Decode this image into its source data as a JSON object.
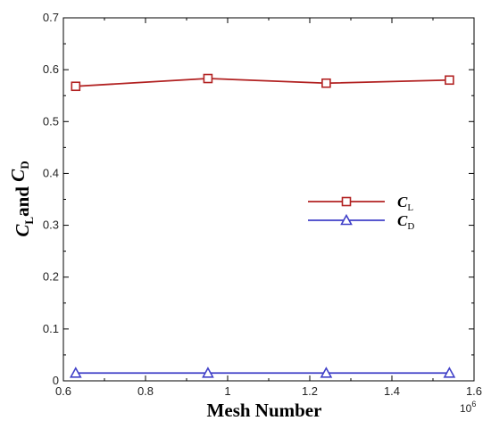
{
  "chart_data": {
    "type": "line",
    "xlabel": "Mesh Number",
    "ylabel": {
      "parts": [
        {
          "text": "C",
          "style": "italic"
        },
        {
          "text": "L",
          "style": "sub"
        },
        {
          "text": "and ",
          "style": "normal"
        },
        {
          "text": "C",
          "style": "italic"
        },
        {
          "text": "D",
          "style": "sub"
        }
      ]
    },
    "x_multiplier": "10",
    "x_multiplier_exp": "6",
    "xlim": [
      0.6,
      1.6
    ],
    "ylim": [
      0,
      0.7
    ],
    "x_ticks": [
      0.6,
      0.8,
      1,
      1.2,
      1.4,
      1.6
    ],
    "x_tick_labels": [
      "0.6",
      "0.8",
      "1",
      "1.2",
      "1.4",
      "1.6"
    ],
    "y_ticks": [
      0,
      0.1,
      0.2,
      0.3,
      0.4,
      0.5,
      0.6,
      0.7
    ],
    "y_tick_labels": [
      "0",
      "0.1",
      "0.2",
      "0.3",
      "0.4",
      "0.5",
      "0.6",
      "0.7"
    ],
    "grid": false,
    "legend_position": "center-right",
    "series": [
      {
        "name": "C",
        "name_sub": "L",
        "color": "#b22222",
        "marker": "square",
        "x": [
          0.63,
          0.952,
          1.24,
          1.54
        ],
        "y": [
          0.568,
          0.583,
          0.574,
          0.58
        ]
      },
      {
        "name": "C",
        "name_sub": "D",
        "color": "#4040c8",
        "marker": "triangle",
        "x": [
          0.63,
          0.952,
          1.24,
          1.54
        ],
        "y": [
          0.015,
          0.015,
          0.015,
          0.015
        ]
      }
    ]
  }
}
